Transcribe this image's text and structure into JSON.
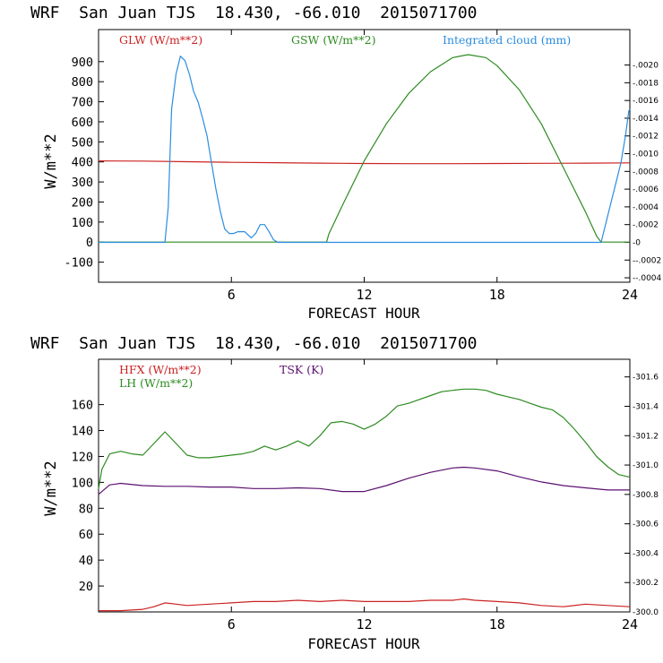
{
  "chart_data": [
    {
      "type": "line",
      "title": "WRF  San Juan TJS  18.430, -66.010  2015071700",
      "xlabel": "FORECAST HOUR",
      "ylabel": "W/m**2",
      "xlim": [
        0,
        24
      ],
      "ylim": [
        -200,
        1060
      ],
      "y2lim": [
        -0.00045,
        0.0024
      ],
      "x_ticks": [
        6,
        12,
        18,
        24
      ],
      "y_ticks": [
        -100,
        0,
        100,
        200,
        300,
        400,
        500,
        600,
        700,
        800,
        900
      ],
      "y2_ticks": [
        -0.0004,
        -0.0002,
        0,
        0.0002,
        0.0004,
        0.0006,
        0.0008,
        0.001,
        0.0012,
        0.0014,
        0.0016,
        0.0018,
        0.002
      ],
      "y2_tick_labels": [
        "-.0004",
        "-.0002",
        "0",
        ".0002",
        ".0004",
        ".0006",
        ".0008",
        ".0010",
        ".0012",
        ".0014",
        ".0016",
        ".0018",
        ".0020"
      ],
      "grid": false,
      "legend": "top",
      "colors": {
        "GLW": "#cc2222",
        "GSW": "#2e8b22",
        "cloud": "#2a8de0"
      },
      "series": [
        {
          "name": "GLW (W/m**2)",
          "axis": "left",
          "x": [
            0,
            2,
            4,
            6,
            8,
            10,
            12,
            14,
            16,
            18,
            20,
            22,
            24
          ],
          "y": [
            405,
            404,
            401,
            398,
            396,
            394,
            392,
            391,
            391,
            392,
            393,
            394,
            395
          ]
        },
        {
          "name": "GSW (W/m**2)",
          "axis": "left",
          "x": [
            0,
            10.3,
            10.4,
            11,
            12,
            13,
            14,
            15,
            16,
            16.7,
            17.5,
            18,
            19,
            20,
            21,
            22,
            22.5,
            22.7,
            24
          ],
          "y": [
            0,
            0,
            40,
            180,
            405,
            590,
            740,
            850,
            920,
            935,
            920,
            880,
            760,
            590,
            370,
            150,
            30,
            0,
            0
          ]
        },
        {
          "name": "Integrated cloud (mm)",
          "axis": "right",
          "x": [
            0,
            3,
            3.15,
            3.3,
            3.5,
            3.7,
            3.9,
            4.1,
            4.3,
            4.5,
            4.7,
            4.9,
            5.1,
            5.3,
            5.5,
            5.7,
            5.9,
            6.1,
            6.3,
            6.6,
            6.9,
            7.1,
            7.3,
            7.5,
            7.7,
            7.9,
            8.1,
            8.4,
            8.7,
            10.2,
            10.3,
            22.6,
            22.7,
            23,
            23.2,
            23.4,
            23.6,
            23.8,
            23.95,
            24
          ],
          "y": [
            0,
            0,
            0.0004,
            0.0015,
            0.0019,
            0.0021,
            0.00205,
            0.0019,
            0.0017,
            0.00158,
            0.0014,
            0.0012,
            0.0009,
            0.0006,
            0.00035,
            0.00015,
            0.0001,
            0.0001,
            0.00012,
            0.00012,
            5e-05,
            0.0001,
            0.0002,
            0.0002,
            0.00012,
            3e-05,
            0,
            0,
            0,
            0,
            0,
            0,
            0,
            0.0003,
            0.0005,
            0.0007,
            0.0009,
            0.0012,
            0.00148,
            0.0015
          ]
        }
      ]
    },
    {
      "type": "line",
      "title": "WRF  San Juan TJS  18.430, -66.010  2015071700",
      "xlabel": "FORECAST HOUR",
      "ylabel": "W/m**2",
      "xlim": [
        0,
        24
      ],
      "ylim": [
        0,
        195
      ],
      "y2lim": [
        300.0,
        301.72
      ],
      "x_ticks": [
        6,
        12,
        18,
        24
      ],
      "y_ticks": [
        20,
        40,
        60,
        80,
        100,
        120,
        140,
        160
      ],
      "y2_ticks": [
        300.0,
        300.2,
        300.4,
        300.6,
        300.8,
        301.0,
        301.2,
        301.4,
        301.6
      ],
      "y2_tick_labels": [
        "300.0",
        "300.2",
        "300.4",
        "300.6",
        "300.8",
        "301.0",
        "301.2",
        "301.4",
        "301.6"
      ],
      "grid": false,
      "legend": "top",
      "colors": {
        "HFX": "#cc2222",
        "LH": "#2e8b22",
        "TSK": "#5a1070"
      },
      "series": [
        {
          "name": "HFX (W/m**2)",
          "axis": "left",
          "x": [
            0,
            1,
            2,
            2.5,
            3,
            3.5,
            4,
            5,
            6,
            7,
            8,
            9,
            10,
            11,
            12,
            13,
            14,
            15,
            16,
            16.5,
            17,
            18,
            19,
            20,
            21,
            22,
            23,
            24
          ],
          "y": [
            1,
            1,
            2,
            4,
            7,
            6,
            5,
            6,
            7,
            8,
            8,
            9,
            8,
            9,
            8,
            8,
            8,
            9,
            9,
            10,
            9,
            8,
            7,
            5,
            4,
            6,
            5,
            4
          ]
        },
        {
          "name": "LH (W/m**2)",
          "axis": "left",
          "x": [
            0,
            0.15,
            0.5,
            1,
            1.5,
            2,
            2.5,
            3,
            3.5,
            4,
            4.5,
            5,
            5.5,
            6,
            6.5,
            7,
            7.5,
            8,
            8.5,
            9,
            9.5,
            10,
            10.5,
            11,
            11.5,
            12,
            12.5,
            13,
            13.5,
            14,
            14.5,
            15,
            15.5,
            16,
            16.5,
            17,
            17.5,
            18,
            18.5,
            19,
            19.5,
            20,
            20.5,
            21,
            21.5,
            22,
            22.5,
            23,
            23.5,
            24
          ],
          "y": [
            95,
            110,
            122,
            124,
            122,
            121,
            130,
            139,
            130,
            121,
            119,
            119,
            120,
            121,
            122,
            124,
            128,
            125,
            128,
            132,
            128,
            136,
            146,
            147,
            145,
            141,
            145,
            151,
            159,
            161,
            164,
            167,
            170,
            171,
            172,
            172,
            171,
            168,
            166,
            164,
            161,
            158,
            156,
            150,
            141,
            131,
            120,
            112,
            106,
            104
          ]
        },
        {
          "name": "TSK (K)",
          "axis": "right",
          "x": [
            0,
            0.5,
            1,
            2,
            3,
            4,
            5,
            6,
            7,
            8,
            9,
            10,
            11,
            12,
            13,
            14,
            15,
            16,
            16.5,
            17,
            18,
            19,
            20,
            21,
            22,
            23,
            24
          ],
          "y": [
            300.8,
            300.865,
            300.875,
            300.86,
            300.855,
            300.855,
            300.85,
            300.85,
            300.84,
            300.84,
            300.845,
            300.84,
            300.82,
            300.82,
            300.86,
            300.91,
            300.95,
            300.98,
            300.985,
            300.98,
            300.96,
            300.92,
            300.885,
            300.86,
            300.845,
            300.83,
            300.83
          ]
        }
      ]
    }
  ]
}
